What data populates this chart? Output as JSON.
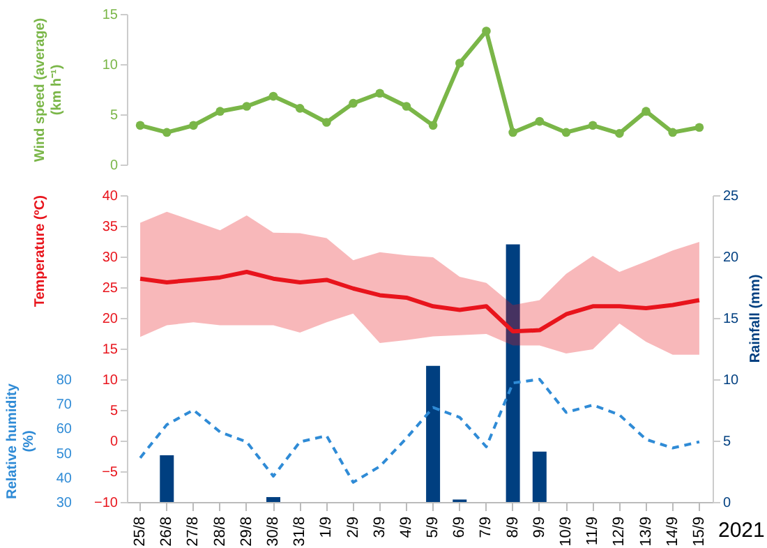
{
  "chart_data": [
    {
      "type": "line",
      "ylabel": "Wind speed (average)\n(km h⁻¹)",
      "categories": [
        null,
        null,
        null,
        null,
        null,
        null,
        null,
        null,
        null,
        null,
        null,
        null,
        null,
        null,
        null,
        null,
        null,
        null,
        null,
        null,
        null,
        null
      ],
      "series": [
        {
          "color": "#7ab648",
          "values": [
            3.9,
            3.2,
            3.9,
            5.3,
            5.8,
            6.8,
            5.6,
            4.2,
            6.1,
            7.1,
            5.8,
            3.9,
            10.1,
            13.3,
            3.2,
            4.3,
            3.2,
            3.9,
            3.1,
            5.3,
            3.2,
            3.7
          ]
        }
      ],
      "ylim": [
        0,
        15
      ],
      "yticks": [
        0,
        5,
        10,
        15
      ],
      "tick_labels": "y",
      "marker": "circle"
    },
    {
      "type": "line",
      "ylabel": "Temperature (ºC)",
      "y2label": "Rainfall (mm)",
      "y3label": "Relative humidity\n(%)",
      "annotations": [
        "2021"
      ],
      "categories": [
        "25/8",
        "26/8",
        "27/8",
        "28/8",
        "29/8",
        "30/8",
        "31/8",
        "1/9",
        "2/9",
        "3/9",
        "4/9",
        "5/9",
        "6/9",
        "7/9",
        "8/9",
        "9/9",
        "10/9",
        "11/9",
        "12/9",
        "13/9",
        "14/9",
        "15/9"
      ],
      "series": [
        {
          "color": "#e8141c",
          "values": [
            26.4,
            25.8,
            26.2,
            26.6,
            27.5,
            26.4,
            25.8,
            26.2,
            24.8,
            23.7,
            23.3,
            21.9,
            21.3,
            21.9,
            17.8,
            18.0,
            20.6,
            21.9,
            21.9,
            21.6,
            22.1,
            22.9
          ],
          "lower": [
            16.9,
            18.8,
            19.3,
            18.8,
            18.8,
            18.8,
            17.6,
            19.3,
            20.7,
            15.9,
            16.4,
            17.0,
            17.2,
            17.4,
            15.5,
            15.5,
            14.2,
            14.9,
            19.1,
            16.1,
            14.0,
            14.0
          ],
          "upper": [
            35.5,
            37.3,
            35.8,
            34.3,
            36.7,
            33.9,
            33.8,
            33.0,
            29.4,
            30.7,
            30.2,
            29.9,
            26.7,
            25.7,
            22.1,
            22.9,
            27.2,
            30.1,
            27.5,
            29.2,
            31.0,
            32.4
          ]
        },
        {
          "axis": "y3",
          "line_style": "dashed",
          "color": "#2f8bd6",
          "values": [
            48,
            61.5,
            67.5,
            58.5,
            54.5,
            40.5,
            54.5,
            57,
            38,
            44.5,
            56,
            68.5,
            64.5,
            52.5,
            78.5,
            80,
            66.5,
            69.5,
            65.5,
            55.5,
            52,
            54.5
          ]
        },
        {
          "type": "bar",
          "axis": "y2",
          "color": "#003f80",
          "values": [
            0,
            3.8,
            0,
            0,
            0,
            0.4,
            0,
            0,
            0,
            0,
            0,
            11.1,
            0.2,
            0,
            21,
            4.1,
            0,
            0,
            0,
            0,
            0,
            0
          ]
        }
      ],
      "ylim": [
        -10,
        40
      ],
      "yticks": [
        -10,
        -5,
        0,
        5,
        10,
        15,
        20,
        25,
        30,
        35,
        40
      ],
      "y2lim": [
        0,
        25
      ],
      "y2ticks": [
        0,
        5,
        10,
        15,
        20,
        25
      ],
      "y3lim": [
        30,
        155
      ],
      "y3ticks": [
        30,
        40,
        50,
        60,
        70,
        80
      ],
      "marker": "none"
    }
  ]
}
